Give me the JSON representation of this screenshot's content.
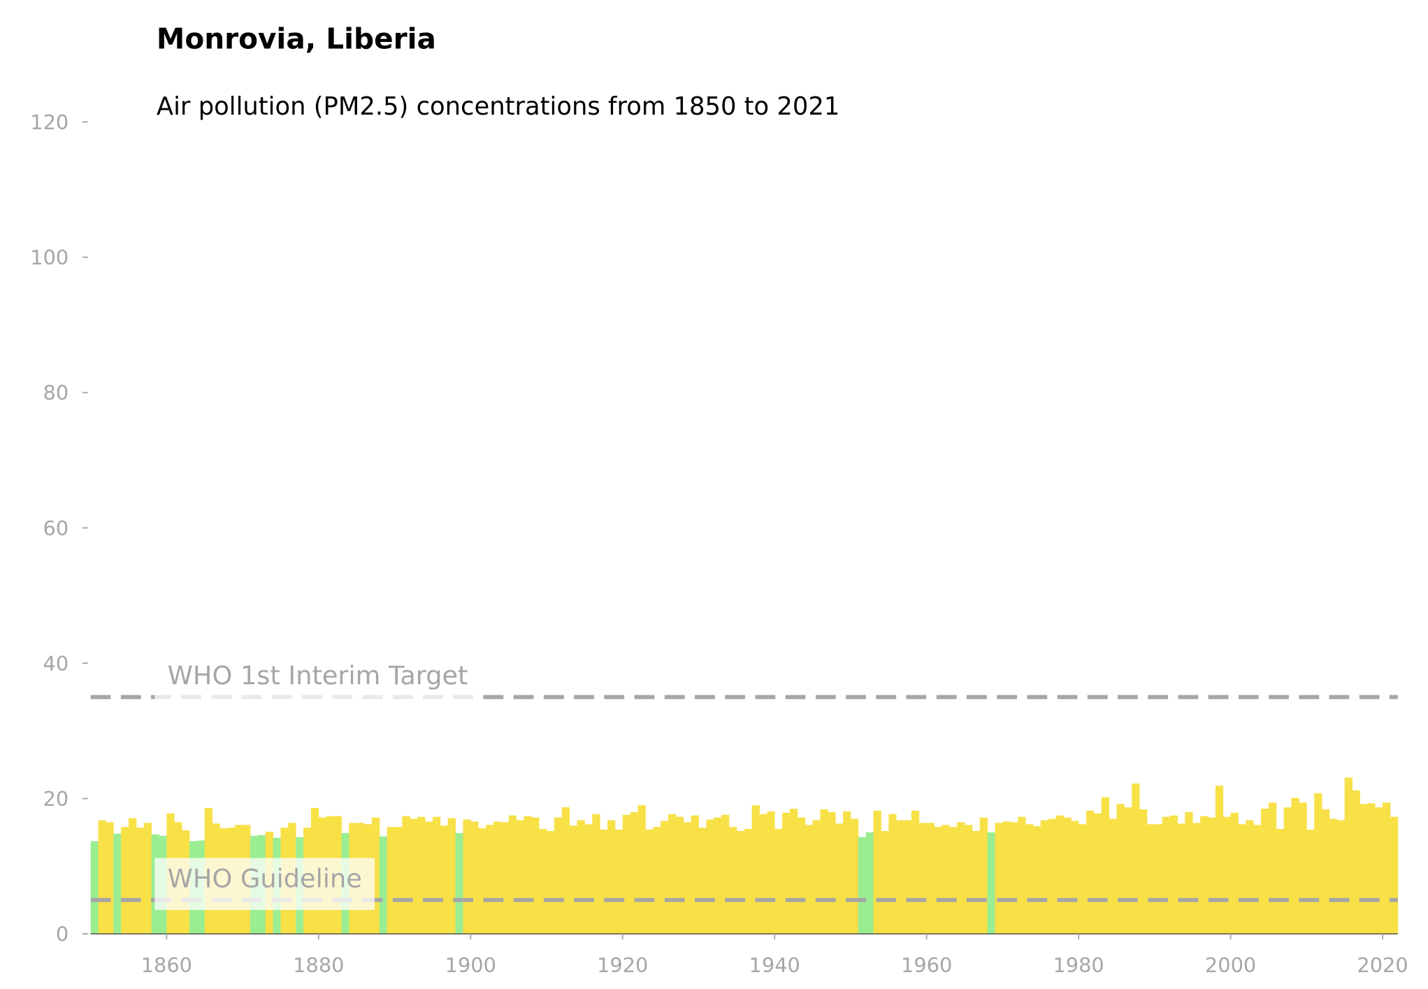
{
  "chart_data": {
    "type": "bar",
    "title": "Monrovia, Liberia",
    "subtitle": "Air pollution (PM2.5) concentrations from 1850 to 2021",
    "x": [
      1850,
      1851,
      1852,
      1853,
      1854,
      1855,
      1856,
      1857,
      1858,
      1859,
      1860,
      1861,
      1862,
      1863,
      1864,
      1865,
      1866,
      1867,
      1868,
      1869,
      1870,
      1871,
      1872,
      1873,
      1874,
      1875,
      1876,
      1877,
      1878,
      1879,
      1880,
      1881,
      1882,
      1883,
      1884,
      1885,
      1886,
      1887,
      1888,
      1889,
      1890,
      1891,
      1892,
      1893,
      1894,
      1895,
      1896,
      1897,
      1898,
      1899,
      1900,
      1901,
      1902,
      1903,
      1904,
      1905,
      1906,
      1907,
      1908,
      1909,
      1910,
      1911,
      1912,
      1913,
      1914,
      1915,
      1916,
      1917,
      1918,
      1919,
      1920,
      1921,
      1922,
      1923,
      1924,
      1925,
      1926,
      1927,
      1928,
      1929,
      1930,
      1931,
      1932,
      1933,
      1934,
      1935,
      1936,
      1937,
      1938,
      1939,
      1940,
      1941,
      1942,
      1943,
      1944,
      1945,
      1946,
      1947,
      1948,
      1949,
      1950,
      1951,
      1952,
      1953,
      1954,
      1955,
      1956,
      1957,
      1958,
      1959,
      1960,
      1961,
      1962,
      1963,
      1964,
      1965,
      1966,
      1967,
      1968,
      1969,
      1970,
      1971,
      1972,
      1973,
      1974,
      1975,
      1976,
      1977,
      1978,
      1979,
      1980,
      1981,
      1982,
      1983,
      1984,
      1985,
      1986,
      1987,
      1988,
      1989,
      1990,
      1991,
      1992,
      1993,
      1994,
      1995,
      1996,
      1997,
      1998,
      1999,
      2000,
      2001,
      2002,
      2003,
      2004,
      2005,
      2006,
      2007,
      2008,
      2009,
      2010,
      2011,
      2012,
      2013,
      2014,
      2015,
      2016,
      2017,
      2018,
      2019,
      2020,
      2021
    ],
    "values": [
      13.7,
      16.8,
      16.5,
      14.8,
      15.8,
      17.1,
      15.7,
      16.4,
      14.7,
      14.5,
      17.8,
      16.5,
      15.3,
      13.7,
      13.8,
      18.6,
      16.3,
      15.6,
      15.7,
      16.1,
      16.1,
      14.5,
      14.6,
      15.1,
      14.2,
      15.7,
      16.4,
      14.3,
      15.7,
      18.6,
      17.2,
      17.4,
      17.4,
      14.9,
      16.4,
      16.4,
      16.2,
      17.2,
      14.4,
      15.8,
      15.8,
      17.4,
      17.0,
      17.3,
      16.6,
      17.3,
      16.0,
      17.1,
      14.9,
      16.9,
      16.6,
      15.6,
      16.1,
      16.6,
      16.5,
      17.5,
      16.8,
      17.4,
      17.2,
      15.5,
      15.2,
      17.2,
      18.7,
      16.0,
      16.8,
      16.2,
      17.7,
      15.4,
      16.8,
      15.4,
      17.6,
      18.0,
      19.0,
      15.4,
      15.8,
      16.7,
      17.7,
      17.3,
      16.5,
      17.5,
      15.7,
      16.9,
      17.2,
      17.6,
      15.8,
      15.2,
      15.5,
      19.0,
      17.7,
      18.1,
      15.5,
      17.9,
      18.5,
      17.2,
      16.1,
      16.8,
      18.4,
      18.0,
      16.3,
      18.1,
      17.0,
      14.3,
      15.0,
      18.2,
      15.2,
      17.7,
      16.8,
      16.8,
      18.2,
      16.4,
      16.4,
      15.8,
      16.1,
      15.8,
      16.5,
      16.1,
      15.2,
      17.2,
      15.0,
      16.4,
      16.6,
      16.5,
      17.3,
      16.2,
      15.9,
      16.8,
      17.0,
      17.5,
      17.2,
      16.7,
      16.2,
      18.2,
      17.8,
      20.2,
      17.0,
      19.2,
      18.7,
      22.2,
      18.4,
      16.2,
      16.2,
      17.3,
      17.5,
      16.3,
      18.0,
      16.4,
      17.4,
      17.2,
      21.9,
      17.3,
      17.9,
      16.2,
      16.8,
      16.1,
      18.5,
      19.4,
      15.5,
      18.7,
      20.1,
      19.4,
      15.4,
      20.8,
      18.4,
      17.0,
      16.8,
      23.1,
      21.2,
      19.2,
      19.3,
      18.7,
      19.4,
      17.3
    ],
    "colors": [
      "#9aed91",
      "#f8e047",
      "#f8e047",
      "#9aed91",
      "#f8e047",
      "#f8e047",
      "#f8e047",
      "#f8e047",
      "#9aed91",
      "#9aed91",
      "#f8e047",
      "#f8e047",
      "#f8e047",
      "#9aed91",
      "#9aed91",
      "#f8e047",
      "#f8e047",
      "#f8e047",
      "#f8e047",
      "#f8e047",
      "#f8e047",
      "#9aed91",
      "#9aed91",
      "#f8e047",
      "#9aed91",
      "#f8e047",
      "#f8e047",
      "#9aed91",
      "#f8e047",
      "#f8e047",
      "#f8e047",
      "#f8e047",
      "#f8e047",
      "#9aed91",
      "#f8e047",
      "#f8e047",
      "#f8e047",
      "#f8e047",
      "#9aed91",
      "#f8e047",
      "#f8e047",
      "#f8e047",
      "#f8e047",
      "#f8e047",
      "#f8e047",
      "#f8e047",
      "#f8e047",
      "#f8e047",
      "#9aed91",
      "#f8e047",
      "#f8e047",
      "#f8e047",
      "#f8e047",
      "#f8e047",
      "#f8e047",
      "#f8e047",
      "#f8e047",
      "#f8e047",
      "#f8e047",
      "#f8e047",
      "#f8e047",
      "#f8e047",
      "#f8e047",
      "#f8e047",
      "#f8e047",
      "#f8e047",
      "#f8e047",
      "#f8e047",
      "#f8e047",
      "#f8e047",
      "#f8e047",
      "#f8e047",
      "#f8e047",
      "#f8e047",
      "#f8e047",
      "#f8e047",
      "#f8e047",
      "#f8e047",
      "#f8e047",
      "#f8e047",
      "#f8e047",
      "#f8e047",
      "#f8e047",
      "#f8e047",
      "#f8e047",
      "#f8e047",
      "#f8e047",
      "#f8e047",
      "#f8e047",
      "#f8e047",
      "#f8e047",
      "#f8e047",
      "#f8e047",
      "#f8e047",
      "#f8e047",
      "#f8e047",
      "#f8e047",
      "#f8e047",
      "#f8e047",
      "#f8e047",
      "#f8e047",
      "#9aed91",
      "#9aed91",
      "#f8e047",
      "#f8e047",
      "#f8e047",
      "#f8e047",
      "#f8e047",
      "#f8e047",
      "#f8e047",
      "#f8e047",
      "#f8e047",
      "#f8e047",
      "#f8e047",
      "#f8e047",
      "#f8e047",
      "#f8e047",
      "#f8e047",
      "#9aed91",
      "#f8e047",
      "#f8e047",
      "#f8e047",
      "#f8e047",
      "#f8e047",
      "#f8e047",
      "#f8e047",
      "#f8e047",
      "#f8e047",
      "#f8e047",
      "#f8e047",
      "#f8e047",
      "#f8e047",
      "#f8e047",
      "#f8e047",
      "#f8e047",
      "#f8e047",
      "#f8e047",
      "#f8e047",
      "#f8e047",
      "#f8e047",
      "#f8e047",
      "#f8e047",
      "#f8e047",
      "#f8e047",
      "#f8e047",
      "#f8e047",
      "#f8e047",
      "#f8e047",
      "#f8e047",
      "#f8e047",
      "#f8e047",
      "#f8e047",
      "#f8e047",
      "#f8e047",
      "#f8e047",
      "#f8e047",
      "#f8e047",
      "#f8e047",
      "#f8e047",
      "#f8e047",
      "#f8e047",
      "#f8e047",
      "#f8e047",
      "#f8e047",
      "#f8e047",
      "#f8e047",
      "#f8e047",
      "#f8e047",
      "#f8e047",
      "#f8e047",
      "#f8e047",
      "#f8e047"
    ],
    "xlim": [
      1850,
      2022
    ],
    "ylim": [
      0,
      120
    ],
    "xticks": [
      1860,
      1880,
      1900,
      1920,
      1940,
      1960,
      1980,
      2000,
      2020
    ],
    "yticks": [
      0,
      20,
      40,
      60,
      80,
      100,
      120
    ],
    "reference_lines": [
      {
        "value": 35,
        "label": "WHO 1st Interim Target"
      },
      {
        "value": 5,
        "label": "WHO Guideline"
      }
    ]
  }
}
